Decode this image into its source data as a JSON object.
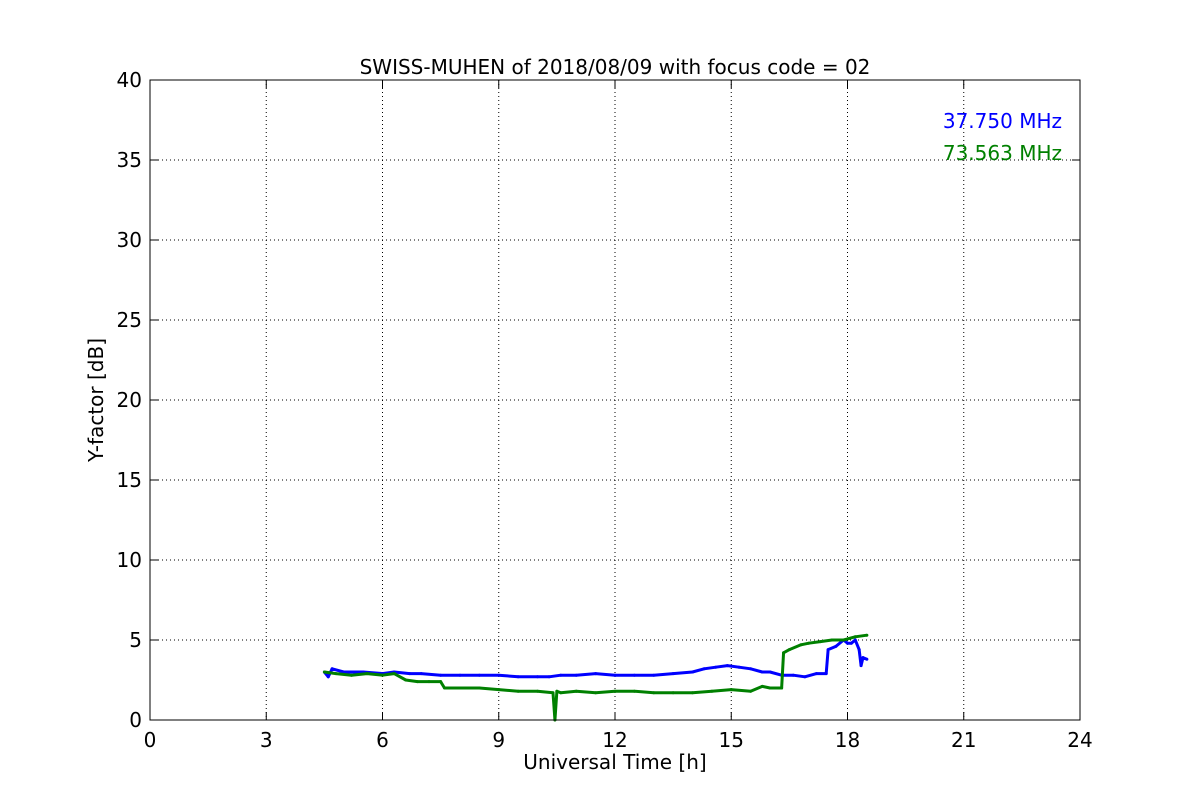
{
  "chart_data": {
    "type": "line",
    "title": "SWISS-MUHEN of 2018/08/09 with focus code = 02",
    "xlabel": "Universal Time [h]",
    "ylabel": "Y-factor [dB]",
    "xlim": [
      0,
      24
    ],
    "ylim": [
      0,
      40
    ],
    "xticks": [
      0,
      3,
      6,
      9,
      12,
      15,
      18,
      21,
      24
    ],
    "yticks": [
      0,
      5,
      10,
      15,
      20,
      25,
      30,
      35,
      40
    ],
    "xtick_labels": [
      "0",
      "3",
      "6",
      "9",
      "12",
      "15",
      "18",
      "21",
      "24"
    ],
    "ytick_labels": [
      "0",
      "5",
      "10",
      "15",
      "20",
      "25",
      "30",
      "35",
      "40"
    ],
    "grid": true,
    "legend_position": "top-right",
    "series": [
      {
        "name": "37.750 MHz",
        "color": "#0000ff",
        "x": [
          4.5,
          4.6,
          4.7,
          5.0,
          5.5,
          6.0,
          6.3,
          6.7,
          7.0,
          7.5,
          8.0,
          8.5,
          9.0,
          9.5,
          10.0,
          10.3,
          10.6,
          11.0,
          11.5,
          12.0,
          12.5,
          13.0,
          13.5,
          14.0,
          14.3,
          14.6,
          14.9,
          15.2,
          15.5,
          15.8,
          16.0,
          16.3,
          16.6,
          16.9,
          17.2,
          17.45,
          17.5,
          17.7,
          17.9,
          18.0,
          18.1,
          18.2,
          18.3,
          18.35,
          18.4,
          18.5
        ],
        "y": [
          3.0,
          2.7,
          3.2,
          3.0,
          3.0,
          2.9,
          3.0,
          2.9,
          2.9,
          2.8,
          2.8,
          2.8,
          2.8,
          2.7,
          2.7,
          2.7,
          2.8,
          2.8,
          2.9,
          2.8,
          2.8,
          2.8,
          2.9,
          3.0,
          3.2,
          3.3,
          3.4,
          3.3,
          3.2,
          3.0,
          3.0,
          2.8,
          2.8,
          2.7,
          2.9,
          2.9,
          4.4,
          4.6,
          5.0,
          4.8,
          4.8,
          5.0,
          4.4,
          3.4,
          3.9,
          3.8
        ]
      },
      {
        "name": "73.563 MHz",
        "color": "#008000",
        "x": [
          4.5,
          4.8,
          5.2,
          5.6,
          6.0,
          6.3,
          6.6,
          6.9,
          7.2,
          7.5,
          7.6,
          8.0,
          8.5,
          9.0,
          9.5,
          10.0,
          10.4,
          10.45,
          10.5,
          10.6,
          11.0,
          11.5,
          12.0,
          12.5,
          13.0,
          13.5,
          14.0,
          14.5,
          15.0,
          15.5,
          15.8,
          16.0,
          16.1,
          16.3,
          16.35,
          16.5,
          16.8,
          17.0,
          17.3,
          17.6,
          17.9,
          18.2,
          18.5
        ],
        "y": [
          3.0,
          2.9,
          2.8,
          2.9,
          2.8,
          2.9,
          2.5,
          2.4,
          2.4,
          2.4,
          2.0,
          2.0,
          2.0,
          1.9,
          1.8,
          1.8,
          1.7,
          0.0,
          1.8,
          1.7,
          1.8,
          1.7,
          1.8,
          1.8,
          1.7,
          1.7,
          1.7,
          1.8,
          1.9,
          1.8,
          2.1,
          2.0,
          2.0,
          2.0,
          4.2,
          4.4,
          4.7,
          4.8,
          4.9,
          5.0,
          5.0,
          5.2,
          5.3
        ]
      }
    ]
  }
}
